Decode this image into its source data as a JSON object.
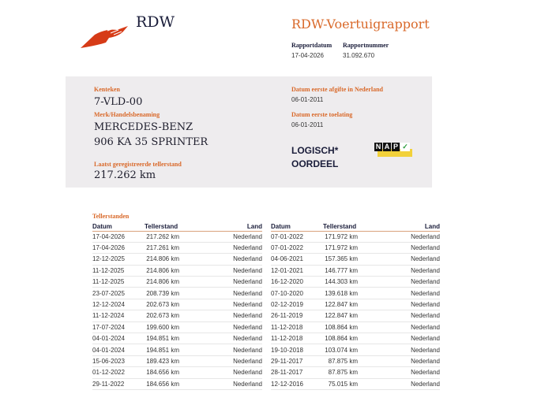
{
  "header": {
    "logo_text": "RDW",
    "title": "RDW-Voertuigrapport",
    "rapportdatum_label": "Rapportdatum",
    "rapportdatum": "17-04-2026",
    "rapportnummer_label": "Rapportnummer",
    "rapportnummer": "31.092.670"
  },
  "vehicle": {
    "kenteken_label": "Kenteken",
    "kenteken": "7-VLD-00",
    "merk_label": "Merk/Handelsbenaming",
    "merk": "MERCEDES-BENZ",
    "model": "906 KA 35 SPRINTER",
    "teller_label": "Laatst geregistreerde tellerstand",
    "teller": "217.262 km",
    "afgifte_label": "Datum eerste afgifte in Nederland",
    "afgifte": "06-01-2011",
    "toelating_label": "Datum eerste toelating",
    "toelating": "06-01-2011",
    "oordeel_line1": "LOGISCH*",
    "oordeel_line2": "OORDEEL",
    "nap_logo": "NAP"
  },
  "colors": {
    "accent": "#d9692a",
    "panel": "#eeecee",
    "nap_yellow": "#f2d13a"
  },
  "tellerstanden": {
    "title": "Tellerstanden",
    "columns": [
      "Datum",
      "Tellerstand",
      "Land"
    ],
    "left": [
      [
        "17-04-2026",
        "217.262 km",
        "Nederland"
      ],
      [
        "17-04-2026",
        "217.261 km",
        "Nederland"
      ],
      [
        "12-12-2025",
        "214.806 km",
        "Nederland"
      ],
      [
        "11-12-2025",
        "214.806 km",
        "Nederland"
      ],
      [
        "11-12-2025",
        "214.806 km",
        "Nederland"
      ],
      [
        "23-07-2025",
        "208.739 km",
        "Nederland"
      ],
      [
        "12-12-2024",
        "202.673 km",
        "Nederland"
      ],
      [
        "11-12-2024",
        "202.673 km",
        "Nederland"
      ],
      [
        "17-07-2024",
        "199.600 km",
        "Nederland"
      ],
      [
        "04-01-2024",
        "194.851 km",
        "Nederland"
      ],
      [
        "04-01-2024",
        "194.851 km",
        "Nederland"
      ],
      [
        "15-06-2023",
        "189.423 km",
        "Nederland"
      ],
      [
        "01-12-2022",
        "184.656 km",
        "Nederland"
      ],
      [
        "29-11-2022",
        "184.656 km",
        "Nederland"
      ]
    ],
    "right": [
      [
        "07-01-2022",
        "171.972 km",
        "Nederland"
      ],
      [
        "07-01-2022",
        "171.972 km",
        "Nederland"
      ],
      [
        "04-06-2021",
        "157.365 km",
        "Nederland"
      ],
      [
        "12-01-2021",
        "146.777 km",
        "Nederland"
      ],
      [
        "16-12-2020",
        "144.303 km",
        "Nederland"
      ],
      [
        "07-10-2020",
        "139.618 km",
        "Nederland"
      ],
      [
        "02-12-2019",
        "122.847 km",
        "Nederland"
      ],
      [
        "26-11-2019",
        "122.847 km",
        "Nederland"
      ],
      [
        "11-12-2018",
        "108.864 km",
        "Nederland"
      ],
      [
        "11-12-2018",
        "108.864 km",
        "Nederland"
      ],
      [
        "19-10-2018",
        "103.074 km",
        "Nederland"
      ],
      [
        "29-11-2017",
        "87.875 km",
        "Nederland"
      ],
      [
        "28-11-2017",
        "87.875 km",
        "Nederland"
      ],
      [
        "12-12-2016",
        "75.015 km",
        "Nederland"
      ]
    ]
  }
}
